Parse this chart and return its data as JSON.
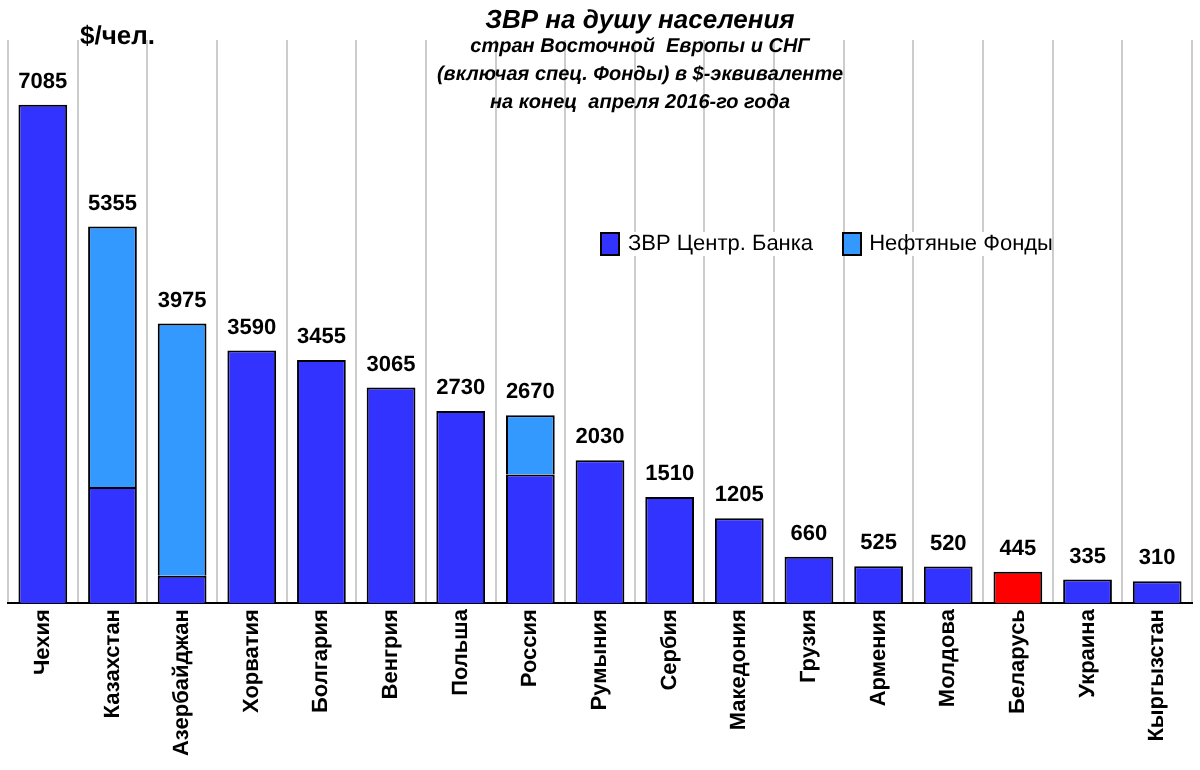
{
  "chart_data": {
    "type": "bar",
    "title": "ЗВР на душу населения",
    "subtitle": "стран Восточной  Европы и СНГ\n(включая спец. Фонды) в $-эквиваленте\nна конец  апреля 2016-го года",
    "ylabel": "$/чел.",
    "categories": [
      "Чехия",
      "Казахстан",
      "Азербайджан",
      "Хорватия",
      "Болгария",
      "Венгрия",
      "Польша",
      "Россия",
      "Румыния",
      "Сербия",
      "Македония",
      "Грузия",
      "Армения",
      "Молдова",
      "Беларусь",
      "Украина",
      "Кыргызстан"
    ],
    "stacked": true,
    "tick_labels": "x",
    "legend": "top right",
    "grid": "x",
    "series": [
      {
        "name": "ЗВР Центр. Банка",
        "color": "#3333ff",
        "colors": [
          "#3333ff",
          "#3333ff",
          "#3333ff",
          "#3333ff",
          "#3333ff",
          "#3333ff",
          "#3333ff",
          "#3333ff",
          "#3333ff",
          "#3333ff",
          "#3333ff",
          "#3333ff",
          "#3333ff",
          "#3333ff",
          "#ff0000",
          "#3333ff",
          "#3333ff"
        ],
        "values": [
          7085,
          1650,
          390,
          3590,
          3455,
          3065,
          2730,
          1830,
          2030,
          1510,
          1205,
          660,
          525,
          520,
          445,
          335,
          310
        ],
        "value_labels": [
          "7085",
          null,
          null,
          "3590",
          "3455",
          "3065",
          "2730",
          null,
          "2030",
          "1510",
          "1205",
          "660",
          "525",
          "520",
          "445",
          "335",
          "310"
        ]
      },
      {
        "name": "Нефтяные Фонды",
        "color": "#3399ff",
        "values": [
          null,
          3705,
          3585,
          null,
          null,
          null,
          null,
          840,
          null,
          null,
          null,
          null,
          null,
          null,
          null,
          null,
          null
        ]
      }
    ],
    "totals": [
      null,
      "5355",
      "3975",
      null,
      null,
      null,
      null,
      "2670",
      null,
      null,
      null,
      null,
      null,
      null,
      null,
      null,
      null
    ]
  }
}
